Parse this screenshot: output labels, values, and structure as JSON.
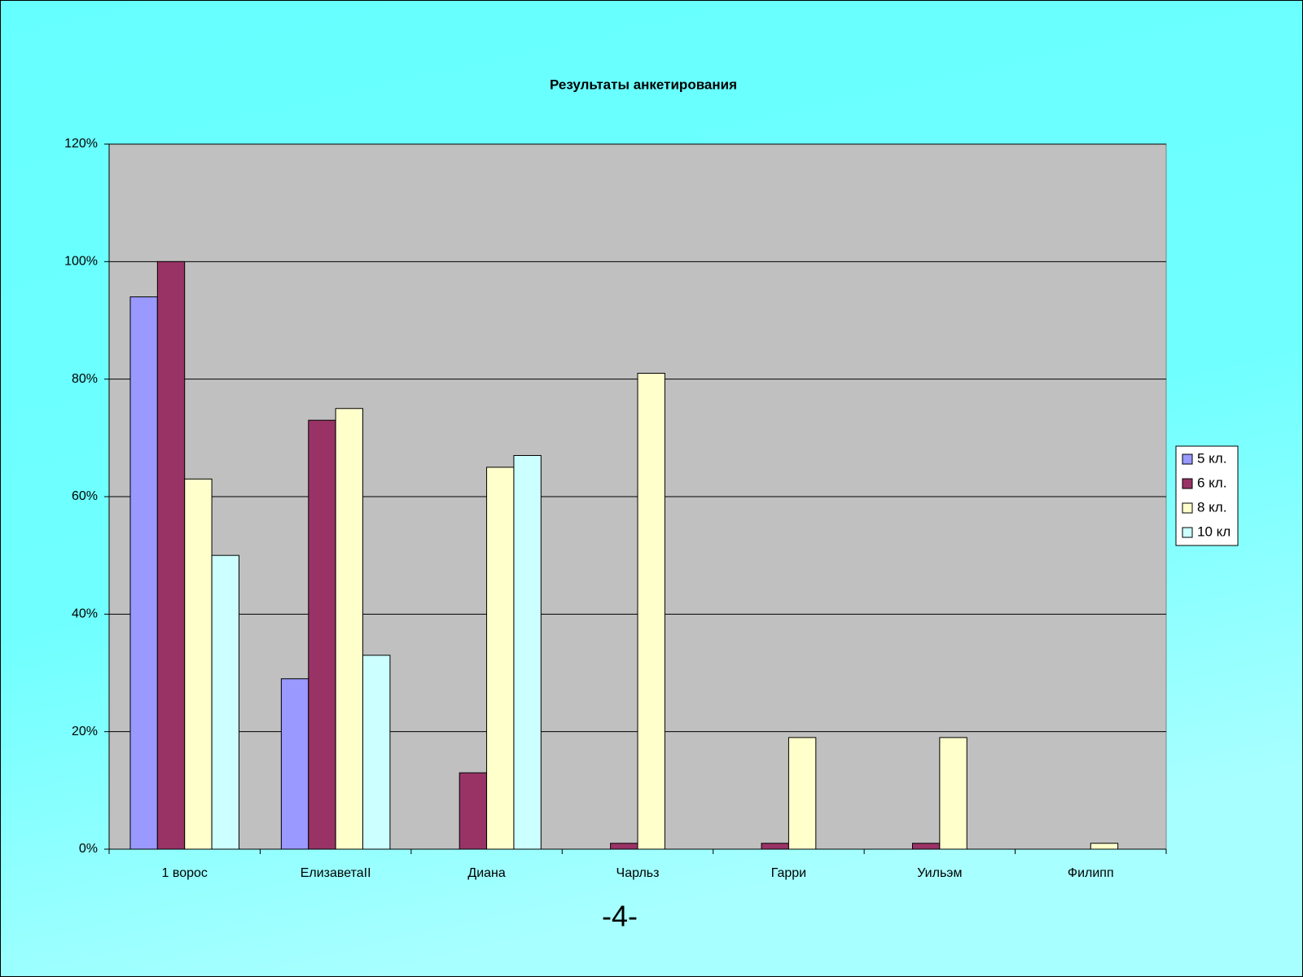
{
  "chart_data": {
    "type": "bar",
    "title": "Результаты анкетирования",
    "categories": [
      "1 ворос",
      "ЕлизаветаII",
      "Диана",
      "Чарльз",
      "Гарри",
      "Уильэм",
      "Филипп"
    ],
    "series": [
      {
        "name": "5 кл.",
        "color": "#9999ff",
        "values": [
          94,
          29,
          0,
          0,
          0,
          0,
          0
        ]
      },
      {
        "name": "6 кл.",
        "color": "#993366",
        "values": [
          100,
          73,
          13,
          1,
          1,
          1,
          0
        ]
      },
      {
        "name": "8 кл.",
        "color": "#ffffcc",
        "values": [
          63,
          75,
          65,
          81,
          19,
          19,
          1
        ]
      },
      {
        "name": "10 кл",
        "color": "#ccffff",
        "values": [
          50,
          33,
          67,
          0,
          0,
          0,
          0
        ]
      }
    ],
    "ylim": [
      0,
      120
    ],
    "yticks": [
      {
        "value": 0,
        "label": "0%"
      },
      {
        "value": 20,
        "label": "20%"
      },
      {
        "value": 40,
        "label": "40%"
      },
      {
        "value": 60,
        "label": "60%"
      },
      {
        "value": 80,
        "label": "80%"
      },
      {
        "value": 100,
        "label": "100%"
      },
      {
        "value": 120,
        "label": "120%"
      }
    ],
    "grid": true,
    "legend": "right",
    "footer": "-4-"
  }
}
